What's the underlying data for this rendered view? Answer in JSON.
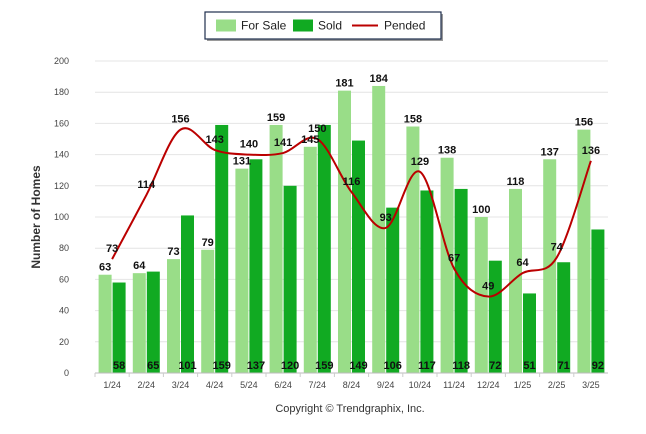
{
  "chart_data": {
    "type": "bar",
    "categories": [
      "1/24",
      "2/24",
      "3/24",
      "4/24",
      "5/24",
      "6/24",
      "7/24",
      "8/24",
      "9/24",
      "10/24",
      "11/24",
      "12/24",
      "1/25",
      "2/25",
      "3/25"
    ],
    "series": [
      {
        "name": "For Sale",
        "type": "bar",
        "color": "#99dd88",
        "values": [
          63,
          64,
          73,
          79,
          131,
          159,
          145,
          181,
          184,
          158,
          138,
          100,
          118,
          137,
          156
        ]
      },
      {
        "name": "Sold",
        "type": "bar",
        "color": "#11aa22",
        "values": [
          58,
          65,
          101,
          159,
          137,
          120,
          159,
          149,
          106,
          117,
          118,
          72,
          51,
          71,
          92
        ]
      },
      {
        "name": "Pended",
        "type": "line",
        "color": "#bb0000",
        "values": [
          73,
          114,
          156,
          143,
          140,
          141,
          150,
          116,
          93,
          129,
          67,
          49,
          64,
          74,
          136
        ]
      }
    ],
    "ylabel": "Number of Homes",
    "yticks": [
      0,
      20,
      40,
      60,
      80,
      100,
      120,
      140,
      160,
      180,
      200
    ],
    "ylim": [
      0,
      200
    ],
    "legend_position": "top-center",
    "grid": true
  },
  "footer": {
    "copyright": "Copyright © Trendgraphix, Inc."
  }
}
